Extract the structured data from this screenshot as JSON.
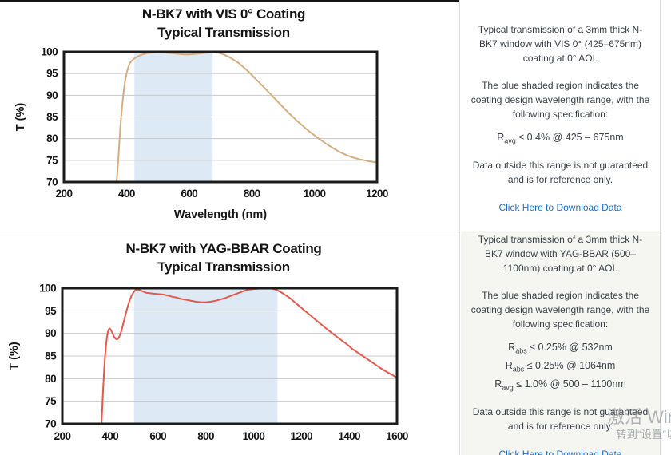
{
  "panels": [
    {
      "description": "Typical transmission of a 3mm thick N-BK7 window with VIS 0° (425–675nm) coating at 0° AOI.",
      "band_note": "The blue shaded region indicates the coating design wavelength range, with the following specification:",
      "specs": [
        {
          "prefix": "R",
          "sub": "avg",
          "rest": " ≤ 0.4% @ 425 – 675nm"
        }
      ],
      "disclaimer": "Data outside this range is not guaranteed and is for reference only.",
      "link_label": "Click Here to Download Data",
      "link_color": "#1e6ec6"
    },
    {
      "description": "Typical transmission of a 3mm thick N-BK7 window with YAG-BBAR (500–1100nm) coating at 0° AOI.",
      "band_note": "The blue shaded region indicates the coating design wavelength range, with the following specification:",
      "specs": [
        {
          "prefix": "R",
          "sub": "abs",
          "rest": " ≤ 0.25% @ 532nm"
        },
        {
          "prefix": "R",
          "sub": "abs",
          "rest": " ≤ 0.25% @ 1064nm"
        },
        {
          "prefix": "R",
          "sub": "avg",
          "rest": " ≤ 1.0% @ 500 – 1100nm"
        }
      ],
      "disclaimer": "Data outside this range is not guaranteed and is for reference only.",
      "link_label": "Click Here to Download Data",
      "link_color": "#1e6ec6"
    }
  ],
  "watermark": {
    "line1": "激活 Windows",
    "line2": "转到“设置”以激活 Windows。"
  },
  "chart_data": [
    {
      "type": "line",
      "title_line1": "N-BK7 with VIS 0° Coating",
      "title_line2": "Typical Transmission",
      "xlabel": "Wavelength (nm)",
      "ylabel": "T (%)",
      "xlim": [
        200,
        1200
      ],
      "ylim": [
        70,
        100
      ],
      "xticks": [
        200,
        400,
        600,
        800,
        1000,
        1200
      ],
      "yticks": [
        70,
        75,
        80,
        85,
        90,
        95,
        100
      ],
      "grid": "horizontal",
      "legend": "none",
      "band": [
        425,
        675
      ],
      "band_color": "#dde9f5",
      "line_color": "#d4ae82",
      "series": [
        {
          "name": "Transmission",
          "points": [
            [
              368,
              70
            ],
            [
              371,
              72.5
            ],
            [
              374,
              75.5
            ],
            [
              377,
              79
            ],
            [
              380,
              82.5
            ],
            [
              384,
              86
            ],
            [
              388,
              89
            ],
            [
              392,
              91.5
            ],
            [
              396,
              93.5
            ],
            [
              400,
              95
            ],
            [
              405,
              96.4
            ],
            [
              410,
              97.3
            ],
            [
              416,
              97.9
            ],
            [
              423,
              98.4
            ],
            [
              430,
              98.7
            ],
            [
              438,
              99.0
            ],
            [
              447,
              99.3
            ],
            [
              457,
              99.5
            ],
            [
              468,
              99.7
            ],
            [
              480,
              99.8
            ],
            [
              495,
              99.9
            ],
            [
              510,
              99.9
            ],
            [
              525,
              99.8
            ],
            [
              540,
              99.7
            ],
            [
              555,
              99.6
            ],
            [
              570,
              99.5
            ],
            [
              585,
              99.4
            ],
            [
              600,
              99.4
            ],
            [
              615,
              99.5
            ],
            [
              630,
              99.6
            ],
            [
              645,
              99.7
            ],
            [
              660,
              99.8
            ],
            [
              673,
              99.9
            ],
            [
              685,
              99.9
            ],
            [
              697,
              99.7
            ],
            [
              710,
              99.4
            ],
            [
              722,
              99.0
            ],
            [
              735,
              98.5
            ],
            [
              748,
              97.9
            ],
            [
              762,
              97.2
            ],
            [
              776,
              96.3
            ],
            [
              790,
              95.4
            ],
            [
              805,
              94.3
            ],
            [
              820,
              93.2
            ],
            [
              835,
              92.1
            ],
            [
              850,
              91.0
            ],
            [
              866,
              89.8
            ],
            [
              882,
              88.6
            ],
            [
              898,
              87.4
            ],
            [
              914,
              86.2
            ],
            [
              930,
              85.1
            ],
            [
              946,
              84.0
            ],
            [
              962,
              83.0
            ],
            [
              978,
              82.0
            ],
            [
              994,
              81.1
            ],
            [
              1010,
              80.2
            ],
            [
              1026,
              79.4
            ],
            [
              1042,
              78.6
            ],
            [
              1058,
              77.9
            ],
            [
              1074,
              77.2
            ],
            [
              1090,
              76.6
            ],
            [
              1106,
              76.1
            ],
            [
              1122,
              75.7
            ],
            [
              1140,
              75.3
            ],
            [
              1160,
              75.0
            ],
            [
              1180,
              74.7
            ],
            [
              1200,
              74.5
            ]
          ]
        }
      ]
    },
    {
      "type": "line",
      "title_line1": "N-BK7 with YAG-BBAR Coating",
      "title_line2": "Typical Transmission",
      "xlabel": "",
      "ylabel": "T (%)",
      "xlim": [
        200,
        1600
      ],
      "ylim": [
        70,
        100
      ],
      "xticks": [
        200,
        400,
        600,
        800,
        1000,
        1200,
        1400,
        1600
      ],
      "yticks": [
        70,
        75,
        80,
        85,
        90,
        95,
        100
      ],
      "grid": "horizontal",
      "legend": "none",
      "band": [
        500,
        1100
      ],
      "band_color": "#dde9f5",
      "line_color": "#e4594b",
      "series": [
        {
          "name": "Transmission",
          "points": [
            [
              364,
              70
            ],
            [
              367,
              73.5
            ],
            [
              370,
              77
            ],
            [
              374,
              81
            ],
            [
              378,
              84.5
            ],
            [
              382,
              87
            ],
            [
              386,
              88.9
            ],
            [
              390,
              90.2
            ],
            [
              394,
              90.9
            ],
            [
              398,
              91.1
            ],
            [
              403,
              90.8
            ],
            [
              409,
              90.1
            ],
            [
              416,
              89.3
            ],
            [
              423,
              88.8
            ],
            [
              430,
              88.7
            ],
            [
              437,
              89.1
            ],
            [
              444,
              90.0
            ],
            [
              451,
              91.3
            ],
            [
              458,
              92.8
            ],
            [
              466,
              94.5
            ],
            [
              474,
              96.0
            ],
            [
              482,
              97.4
            ],
            [
              490,
              98.4
            ],
            [
              498,
              99.1
            ],
            [
              506,
              99.6
            ],
            [
              514,
              99.7
            ],
            [
              524,
              99.6
            ],
            [
              536,
              99.3
            ],
            [
              550,
              99.0
            ],
            [
              565,
              98.9
            ],
            [
              580,
              98.8
            ],
            [
              600,
              98.7
            ],
            [
              620,
              98.6
            ],
            [
              640,
              98.4
            ],
            [
              660,
              98.1
            ],
            [
              680,
              97.9
            ],
            [
              700,
              97.6
            ],
            [
              720,
              97.4
            ],
            [
              740,
              97.2
            ],
            [
              760,
              97.0
            ],
            [
              780,
              96.9
            ],
            [
              800,
              96.9
            ],
            [
              820,
              97.0
            ],
            [
              840,
              97.2
            ],
            [
              860,
              97.5
            ],
            [
              880,
              97.8
            ],
            [
              900,
              98.2
            ],
            [
              920,
              98.6
            ],
            [
              940,
              99.0
            ],
            [
              960,
              99.4
            ],
            [
              980,
              99.7
            ],
            [
              1000,
              99.8
            ],
            [
              1020,
              99.9
            ],
            [
              1040,
              100
            ],
            [
              1065,
              100
            ],
            [
              1085,
              99.8
            ],
            [
              1100,
              99.5
            ],
            [
              1115,
              99.1
            ],
            [
              1130,
              98.6
            ],
            [
              1150,
              97.9
            ],
            [
              1170,
              97.0
            ],
            [
              1190,
              96.1
            ],
            [
              1210,
              95.2
            ],
            [
              1235,
              94.1
            ],
            [
              1260,
              93.0
            ],
            [
              1285,
              91.9
            ],
            [
              1310,
              90.8
            ],
            [
              1335,
              89.8
            ],
            [
              1360,
              88.8
            ],
            [
              1385,
              87.8
            ],
            [
              1400,
              87.2
            ],
            [
              1412,
              86.6
            ],
            [
              1435,
              85.8
            ],
            [
              1460,
              84.9
            ],
            [
              1485,
              84.0
            ],
            [
              1510,
              83.1
            ],
            [
              1535,
              82.2
            ],
            [
              1560,
              81.4
            ],
            [
              1580,
              80.8
            ],
            [
              1600,
              80.2
            ]
          ]
        }
      ]
    }
  ]
}
